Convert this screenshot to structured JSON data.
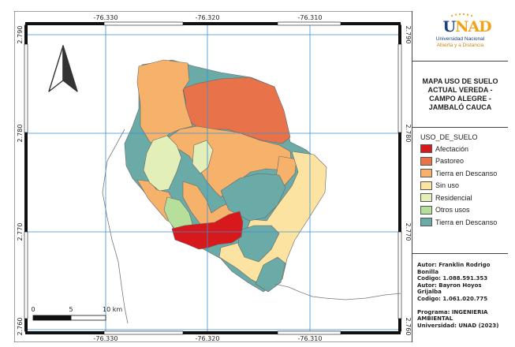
{
  "map": {
    "lon_labels": [
      "-76.330",
      "-76.320",
      "-76.310"
    ],
    "lat_labels": [
      "2.790",
      "2.780",
      "2.770",
      "2.760"
    ],
    "scale": {
      "start": "0",
      "mid": "5",
      "end": "10 km"
    }
  },
  "side": {
    "logo_text_u": "U",
    "logo_text_nad": "NAD",
    "logo_line1": "Universidad Nacional",
    "logo_line2": "Abierta y a Distancia",
    "title": "MAPA USO DE SUELO\nACTUAL VEREDA -\nCAMPO ALEGRE -\nJAMBALÓ CAUCA",
    "legend_title": "USO_DE_SUELO",
    "legend": [
      {
        "label": "Afectación",
        "color": "#d7191c"
      },
      {
        "label": "Pastoreo",
        "color": "#e8734a"
      },
      {
        "label": "Tierra en Descanso",
        "color": "#f6b26b"
      },
      {
        "label": "Sin uso",
        "color": "#fde3a1"
      },
      {
        "label": "Residencial",
        "color": "#e2efb8"
      },
      {
        "label": "Otros usos",
        "color": "#b7df9c"
      },
      {
        "label": "Tierra en Descanso",
        "color": "#6aaba7"
      }
    ],
    "credits": [
      "Autor: Franklin Rodrigo",
      "Bonilla",
      "Codigo: 1.088.591.353",
      "Autor: Bayron Hoyos",
      "Grijalba",
      "Codigo: 1.061.020.775",
      "",
      "Programa: INGENIERIA",
      "AMBIENTAL",
      "Universidad: UNAD (2023)"
    ]
  }
}
